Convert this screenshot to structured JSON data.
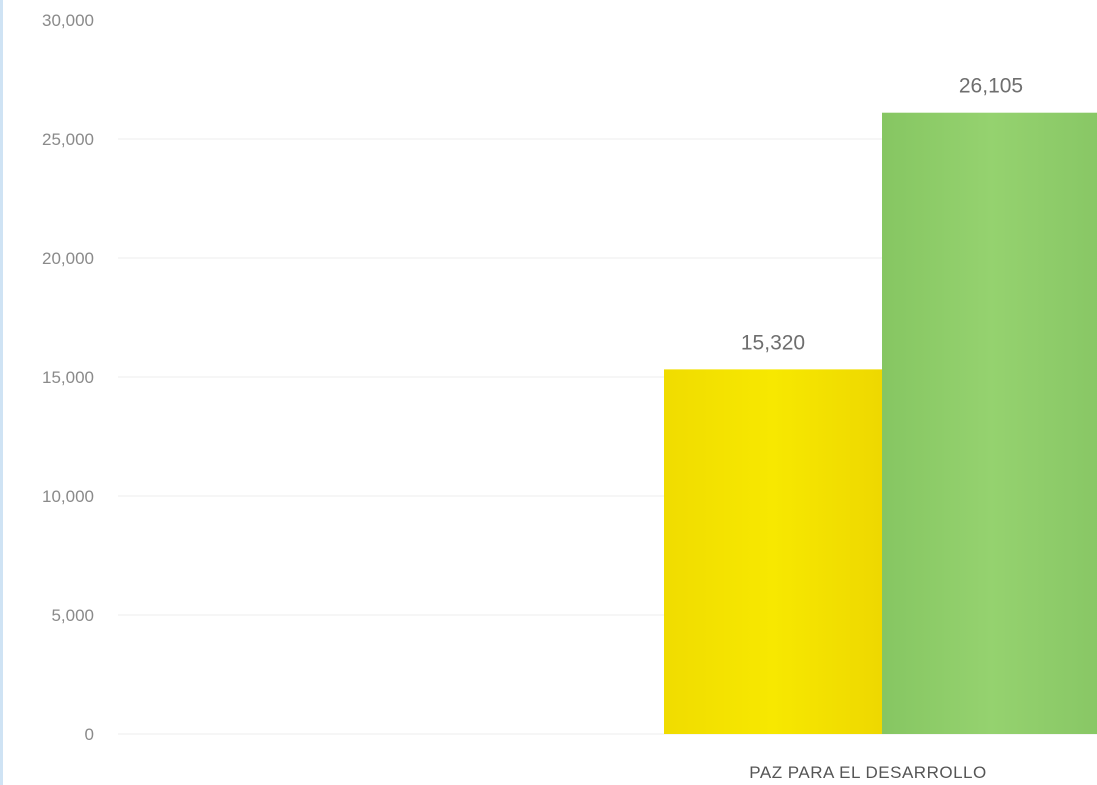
{
  "chart_data": {
    "type": "bar",
    "categories": [
      "PAZ PARA EL DESARROLLO"
    ],
    "series": [
      {
        "values": [
          15320
        ],
        "value_labels": [
          "15,320"
        ],
        "color": "#f5e600"
      },
      {
        "values": [
          26105
        ],
        "value_labels": [
          "26,105"
        ],
        "color": "#8fcf6a"
      }
    ],
    "ylim": [
      0,
      30000
    ],
    "yticks": [
      0,
      5000,
      10000,
      15000,
      20000,
      25000,
      30000
    ],
    "ytick_labels": [
      "0",
      "5,000",
      "10,000",
      "15,000",
      "20,000",
      "25,000",
      "30,000"
    ],
    "grid": true
  }
}
